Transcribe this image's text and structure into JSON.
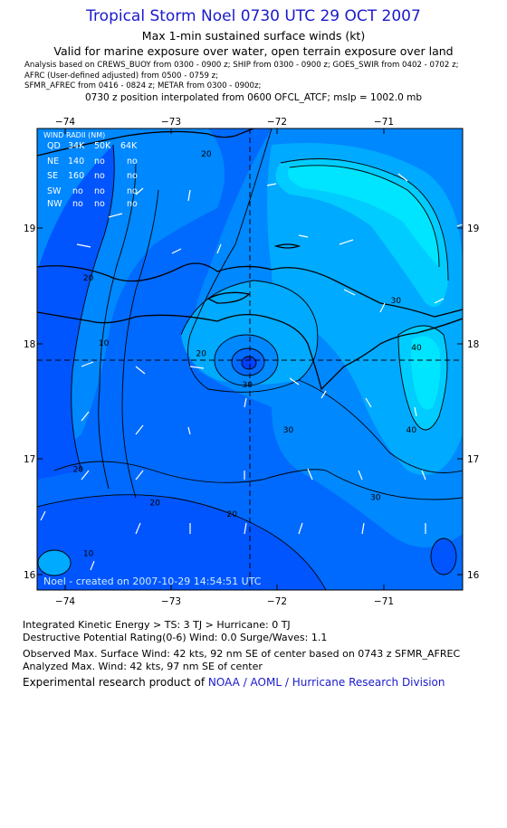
{
  "header": {
    "title": "Tropical Storm Noel 0730 UTC 29 OCT 2007",
    "subtitle1": "Max 1-min sustained surface winds (kt)",
    "subtitle2": "Valid for marine exposure over water, open terrain exposure over land",
    "sources_line1": "Analysis based on  CREWS_BUOY from 0300 - 0900 z;  SHIP from 0300 - 0900 z;  GOES_SWIR from 0402 - 0702 z;",
    "sources_line2": "AFRC (User-defined adjusted) from 0500 - 0759 z;",
    "sources_line3": "SFMR_AFREC from 0416 - 0824 z;  METAR from 0300 - 0900z;",
    "position_note": "0730 z position interpolated from 0600 OFCL_ATCF; mslp = 1002.0 mb"
  },
  "map": {
    "lon_ticks": [
      "−74",
      "−73",
      "−72",
      "−71"
    ],
    "lat_ticks": [
      "19",
      "18",
      "17",
      "16"
    ],
    "lon_range": [
      -74.25,
      -70.1
    ],
    "lat_range": [
      15.9,
      20.0
    ],
    "center": {
      "lon": -72.25,
      "lat": 17.85
    },
    "wind_radii": {
      "title": "WIND RADII (NM)",
      "header": [
        "QD",
        "34K",
        "50K",
        "64K"
      ],
      "rows": [
        [
          "NE",
          "140",
          "no",
          "no"
        ],
        [
          "SE",
          "160",
          "no",
          "no"
        ],
        [
          "SW",
          "no",
          "no",
          "no"
        ],
        [
          "NW",
          "no",
          "no",
          "no"
        ]
      ]
    },
    "contour_labels": [
      {
        "text": "20",
        "lon": -73.75,
        "lat": 18.65
      },
      {
        "text": "10",
        "lon": -73.6,
        "lat": 18.07
      },
      {
        "text": "20",
        "lon": -72.6,
        "lat": 19.75
      },
      {
        "text": "30",
        "lon": -70.75,
        "lat": 18.45
      },
      {
        "text": "20",
        "lon": -72.65,
        "lat": 17.98
      },
      {
        "text": "30",
        "lon": -72.2,
        "lat": 17.7
      },
      {
        "text": "30",
        "lon": -71.8,
        "lat": 17.3
      },
      {
        "text": "40",
        "lon": -70.55,
        "lat": 18.03
      },
      {
        "text": "40",
        "lon": -70.6,
        "lat": 17.3
      },
      {
        "text": "20",
        "lon": -73.85,
        "lat": 16.95
      },
      {
        "text": "20",
        "lon": -73.1,
        "lat": 16.65
      },
      {
        "text": "20",
        "lon": -72.35,
        "lat": 16.55
      },
      {
        "text": "30",
        "lon": -70.95,
        "lat": 16.7
      },
      {
        "text": "10",
        "lon": -73.75,
        "lat": 16.2
      }
    ],
    "credit": "Noel - created on 2007-10-29 14:54:51 UTC",
    "colors": {
      "band_10": "#0040ff",
      "band_15": "#0055ff",
      "band_20": "#006aff",
      "band_25": "#0088ff",
      "band_30": "#00aaff",
      "band_35": "#00ccff",
      "band_40": "#00e5ff",
      "contour_line": "#000000",
      "coast_line": "#000000",
      "wind_arrow": "#ffffff"
    }
  },
  "footer": {
    "ike": "Integrated Kinetic Energy > TS: 3 TJ   > Hurricane: 0 TJ",
    "dpr": "Destructive Potential Rating(0-6)   Wind: 0.0 Surge/Waves: 1.1",
    "obs_max": "Observed Max. Surface Wind: 42 kts, 92 nm SE of center based on 0743 z SFMR_AFREC",
    "ana_max": "Analyzed Max. Wind: 42 kts, 97 nm SE of center",
    "credit_prefix": "Experimental research product of ",
    "credit_link": "NOAA / AOML / Hurricane Research Division"
  }
}
